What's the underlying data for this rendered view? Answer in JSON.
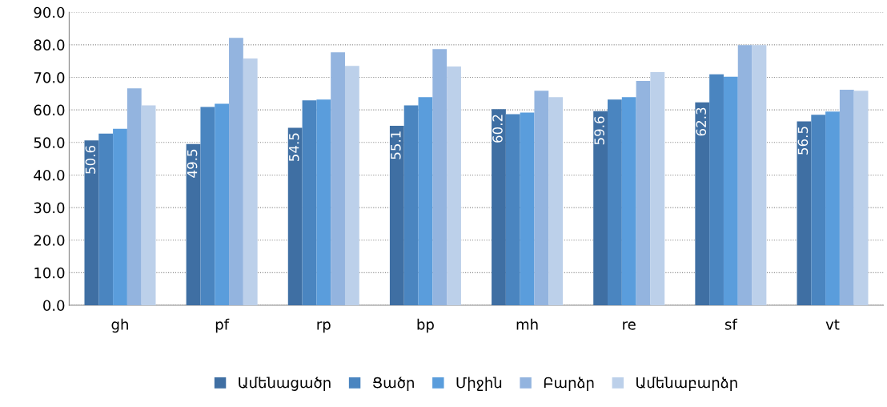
{
  "chart_data": {
    "type": "bar",
    "categories": [
      "gh",
      "pf",
      "rp",
      "bp",
      "mh",
      "re",
      "sf",
      "vt"
    ],
    "series": [
      {
        "name": "Ամենացածր",
        "color": "#3f6fa3",
        "values": [
          50.6,
          49.5,
          54.5,
          55.1,
          60.2,
          59.6,
          62.3,
          56.5
        ],
        "value_labels": [
          "50.6",
          "49.5",
          "54.5",
          "55.1",
          "60.2",
          "59.6",
          "62.3",
          "56.5"
        ]
      },
      {
        "name": "Ցածր",
        "color": "#4a85c0",
        "values": [
          52.7,
          60.9,
          62.9,
          61.4,
          58.7,
          63.2,
          70.9,
          58.5
        ]
      },
      {
        "name": "Միջին",
        "color": "#5a9ddc",
        "values": [
          54.2,
          61.9,
          63.2,
          63.9,
          59.2,
          63.9,
          70.2,
          59.5
        ]
      },
      {
        "name": "Բարձր",
        "color": "#93b4df",
        "values": [
          66.6,
          82.1,
          77.7,
          78.7,
          65.9,
          68.9,
          79.9,
          66.2
        ]
      },
      {
        "name": "Ամենաբարձր",
        "color": "#bcd0ea",
        "values": [
          61.4,
          75.8,
          73.5,
          73.3,
          63.9,
          71.6,
          79.9,
          65.9
        ]
      }
    ],
    "ylim": [
      0,
      90
    ],
    "yticks": [
      {
        "value": 0,
        "label": "0.0"
      },
      {
        "value": 10,
        "label": "10.0"
      },
      {
        "value": 20,
        "label": "20.0"
      },
      {
        "value": 30,
        "label": "30.0"
      },
      {
        "value": 40,
        "label": "40.0"
      },
      {
        "value": 50,
        "label": "50.0"
      },
      {
        "value": 60,
        "label": "60.0"
      },
      {
        "value": 70,
        "label": "70.0"
      },
      {
        "value": 80,
        "label": "80.0"
      },
      {
        "value": 90,
        "label": "90.0"
      }
    ],
    "grid": "y",
    "legend": "bottom"
  }
}
